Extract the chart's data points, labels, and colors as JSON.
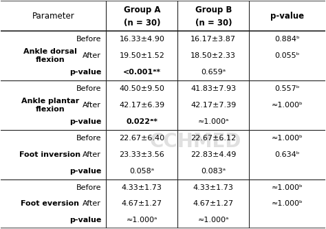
{
  "sections": [
    {
      "param_lines": [
        "Ankle dorsal",
        "flexion"
      ],
      "rows": [
        {
          "label": "Before",
          "group_a": "16.33±4.90",
          "group_b": "16.17±3.87",
          "pval": "0.884ᵇ",
          "bold_a": false
        },
        {
          "label": "After",
          "group_a": "19.50±1.52",
          "group_b": "18.50±2.33",
          "pval": "0.055ᵇ",
          "bold_a": false
        },
        {
          "label": "p-value",
          "group_a": "<0.001ᵃ*",
          "group_b": "0.659ᵃ",
          "pval": "",
          "bold_a": true
        }
      ]
    },
    {
      "param_lines": [
        "Ankle plantar",
        "flexion"
      ],
      "rows": [
        {
          "label": "Before",
          "group_a": "40.50±9.50",
          "group_b": "41.83±7.93",
          "pval": "0.557ᵇ",
          "bold_a": false
        },
        {
          "label": "After",
          "group_a": "42.17±6.39",
          "group_b": "42.17±7.39",
          "pval": "≈1.000ᵇ",
          "bold_a": false
        },
        {
          "label": "p-value",
          "group_a": "0.022ᵃ*",
          "group_b": "≈1.000ᵃ",
          "pval": "",
          "bold_a": true
        }
      ]
    },
    {
      "param_lines": [
        "Foot inversion"
      ],
      "rows": [
        {
          "label": "Before",
          "group_a": "22.67±6.40",
          "group_b": "22.67±6.12",
          "pval": "≈1.000ᵇ",
          "bold_a": false
        },
        {
          "label": "After",
          "group_a": "23.33±3.56",
          "group_b": "22.83±4.49",
          "pval": "0.634ᵇ",
          "bold_a": false
        },
        {
          "label": "p-value",
          "group_a": "0.058ᵃ",
          "group_b": "0.083ᵃ",
          "pval": "",
          "bold_a": false
        }
      ]
    },
    {
      "param_lines": [
        "Foot eversion"
      ],
      "rows": [
        {
          "label": "Before",
          "group_a": "4.33±1.73",
          "group_b": "4.33±1.73",
          "pval": "≈1.000ᵇ",
          "bold_a": false
        },
        {
          "label": "After",
          "group_a": "4.67±1.27",
          "group_b": "4.67±1.27",
          "pval": "≈1.000ᵇ",
          "bold_a": false
        },
        {
          "label": "p-value",
          "group_a": "≈1.000ᵃ",
          "group_b": "≈1.000ᵃ",
          "pval": "",
          "bold_a": false
        }
      ]
    }
  ],
  "bg": "#ffffff",
  "lc": "#222222",
  "tc": "#000000",
  "watermark": "CCHMED",
  "watermark_color": "#c8c8c8"
}
